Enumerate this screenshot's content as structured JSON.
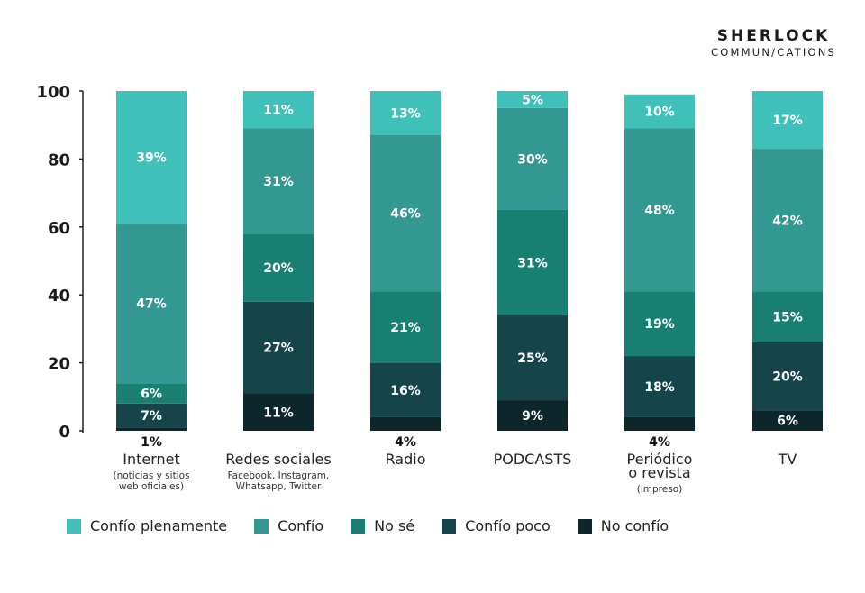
{
  "brand": {
    "line1": "SHERLOCK",
    "line2": "COMMUN/CATIONS"
  },
  "colors": {
    "confio_plenamente": "#3fc0b9",
    "confio": "#349892",
    "no_se": "#1a7f73",
    "confio_poco": "#15454b",
    "no_confio": "#0c262b"
  },
  "chart_data": {
    "type": "bar",
    "stacked": true,
    "ylim": [
      0,
      100
    ],
    "yticks": [
      0,
      20,
      40,
      60,
      80,
      100
    ],
    "grid": false,
    "legend_position": "bottom",
    "categories": [
      {
        "label": "Internet",
        "sub": [
          "(noticias y sitios",
          "web oficiales)"
        ]
      },
      {
        "label": "Redes sociales",
        "sub": [
          "Facebook, Instagram,",
          "Whatsapp, Twitter"
        ]
      },
      {
        "label": "Radio",
        "sub": []
      },
      {
        "label": "PODCASTS",
        "sub": []
      },
      {
        "label": "Periódico",
        "label2": "o revista",
        "sub": [
          "(impreso)"
        ]
      },
      {
        "label": "TV",
        "sub": []
      }
    ],
    "series": [
      {
        "name": "No confío",
        "key": "no_confio",
        "values": [
          1,
          11,
          4,
          9,
          4,
          6
        ],
        "labels": [
          "1%",
          "11%",
          "4%",
          "9%",
          "4%",
          "6%"
        ]
      },
      {
        "name": "Confío poco",
        "key": "confio_poco",
        "values": [
          7,
          27,
          16,
          25,
          18,
          20
        ],
        "labels": [
          "7%",
          "27%",
          "16%",
          "25%",
          "18%",
          "20%"
        ]
      },
      {
        "name": "No sé",
        "key": "no_se",
        "values": [
          6,
          20,
          21,
          31,
          19,
          15
        ],
        "labels": [
          "6%",
          "20%",
          "21%",
          "31%",
          "19%",
          "15%"
        ]
      },
      {
        "name": "Confío",
        "key": "confio",
        "values": [
          47,
          31,
          46,
          30,
          48,
          42
        ],
        "labels": [
          "47%",
          "31%",
          "46%",
          "30%",
          "48%",
          "42%"
        ]
      },
      {
        "name": "Confío plenamente",
        "key": "confio_plenamente",
        "values": [
          39,
          11,
          13,
          5,
          10,
          17
        ],
        "labels": [
          "39%",
          "11%",
          "13%",
          "5%",
          "10%",
          "17%"
        ]
      }
    ],
    "legend": [
      "Confío plenamente",
      "Confío",
      "No sé",
      "Confío poco",
      "No confío"
    ]
  }
}
